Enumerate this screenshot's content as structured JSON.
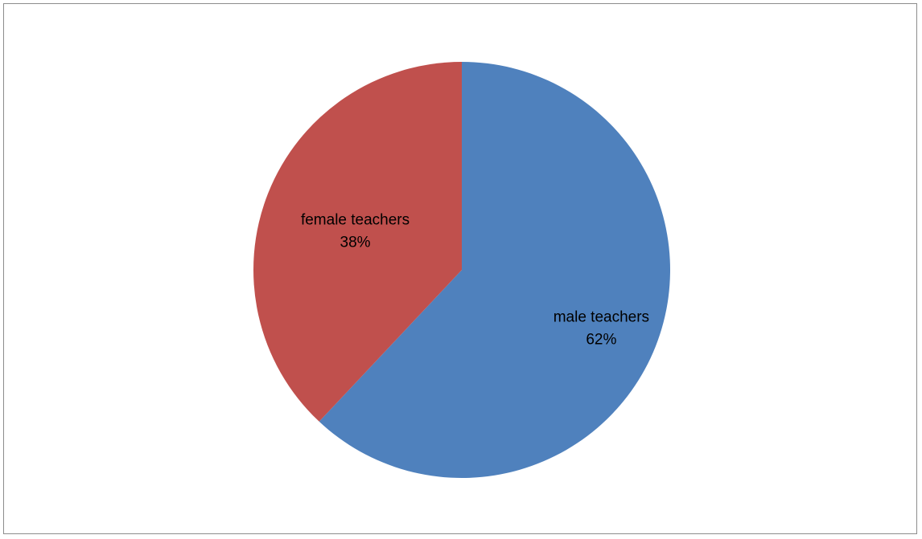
{
  "chart_data": {
    "type": "pie",
    "title": "",
    "slices": [
      {
        "label": "male teachers",
        "value": 62,
        "percent_label": "62%",
        "color": "#4F81BD"
      },
      {
        "label": "female teachers",
        "value": 38,
        "percent_label": "38%",
        "color": "#C0504D"
      }
    ],
    "start_angle": "12 o'clock",
    "direction": "clockwise",
    "legend": "none",
    "data_labels": "inside"
  }
}
